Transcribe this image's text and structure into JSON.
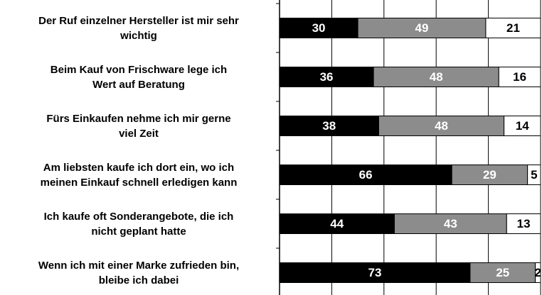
{
  "chart_data": {
    "type": "stacked-barh",
    "categories": [
      "Der Ruf einzelner Hersteller ist mir sehr\nwichtig",
      "Beim Kauf von Frischware lege ich\nWert auf Beratung",
      "Fürs Einkaufen nehme ich mir gerne\nviel Zeit",
      "Am liebsten kaufe ich dort ein, wo ich\nmeinen Einkauf schnell erledigen kann",
      "Ich kaufe oft Sonderangebote, die ich\nnicht geplant hatte",
      "Wenn ich mit einer Marke zufrieden bin,\nbleibe ich dabei"
    ],
    "series": [
      {
        "color": "#000000",
        "values": [
          30,
          36,
          38,
          66,
          44,
          73
        ]
      },
      {
        "color": "#8c8c8c",
        "values": [
          49,
          48,
          48,
          29,
          43,
          25
        ]
      },
      {
        "color": "#ffffff",
        "values": [
          21,
          16,
          14,
          5,
          13,
          2
        ]
      }
    ],
    "xlim": [
      0,
      100
    ],
    "xticks": [
      0,
      20,
      40,
      60,
      80,
      100
    ],
    "grid": true
  }
}
